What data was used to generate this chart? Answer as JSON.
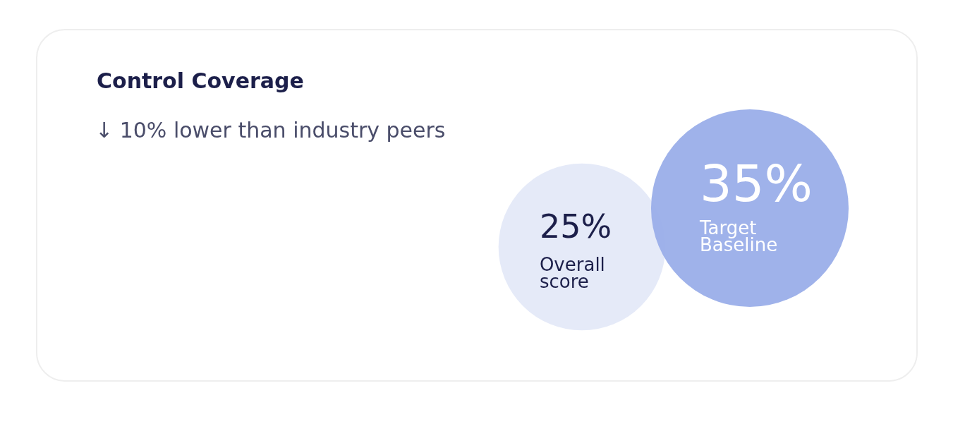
{
  "chart_data": {
    "type": "other",
    "title": "Control Coverage",
    "subtitle": "↓ 10% lower than industry peers",
    "categories": [
      "Overall score",
      "Target Baseline"
    ],
    "values": [
      25,
      35
    ],
    "value_labels": [
      "25%",
      "35%"
    ],
    "colors": [
      "#e4e9f8",
      "#9aaee9"
    ]
  }
}
